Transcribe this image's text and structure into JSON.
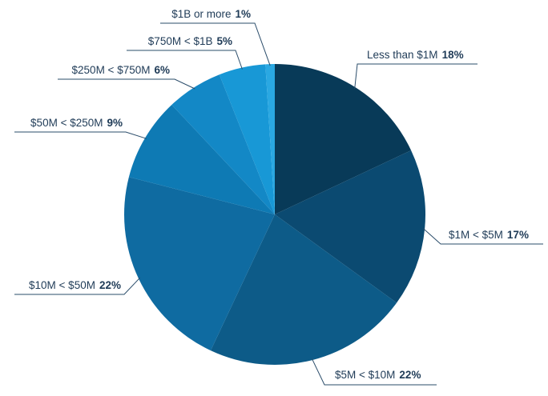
{
  "chart_data": {
    "type": "pie",
    "title": "",
    "slices": [
      {
        "label": "Less than $1M",
        "value": 18,
        "value_label": "18%",
        "color": "#083a58"
      },
      {
        "label": "$1M < $5M",
        "value": 17,
        "value_label": "17%",
        "color": "#0b4a71"
      },
      {
        "label": "$5M < $10M",
        "value": 22,
        "value_label": "22%",
        "color": "#0d5b88"
      },
      {
        "label": "$10M < $50M",
        "value": 22,
        "value_label": "22%",
        "color": "#0f6ba1"
      },
      {
        "label": "$50M < $250M",
        "value": 9,
        "value_label": "9%",
        "color": "#0e7ab4"
      },
      {
        "label": "$250M < $750M",
        "value": 6,
        "value_label": "6%",
        "color": "#1388c6"
      },
      {
        "label": "$750M < $1B",
        "value": 5,
        "value_label": "5%",
        "color": "#1898d6"
      },
      {
        "label": "$1B or more",
        "value": 1,
        "value_label": "1%",
        "color": "#2aa8e2"
      }
    ],
    "leader_line_color": "#2a4c6a"
  }
}
